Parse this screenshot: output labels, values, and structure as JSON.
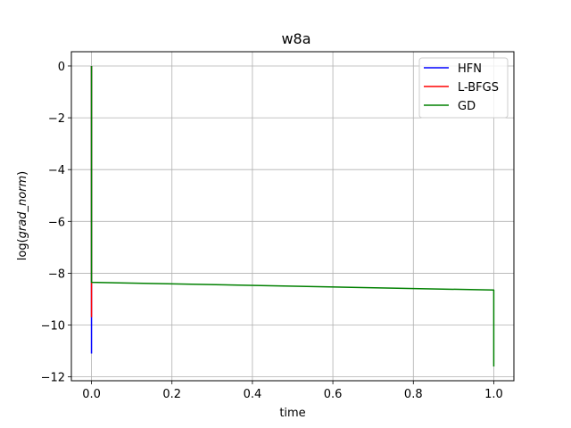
{
  "chart_data": {
    "type": "line",
    "title": "w8a",
    "xlabel": "time",
    "ylabel_prefix": "log(",
    "ylabel_italic": "grad_norm",
    "ylabel_suffix": ")",
    "xlim": [
      -0.05,
      1.05
    ],
    "ylim": [
      -12.15,
      0.55
    ],
    "xticks": [
      0.0,
      0.2,
      0.4,
      0.6,
      0.8,
      1.0
    ],
    "xtick_labels": [
      "0.0",
      "0.2",
      "0.4",
      "0.6",
      "0.8",
      "1.0"
    ],
    "yticks": [
      0,
      -2,
      -4,
      -6,
      -8,
      -10,
      -12
    ],
    "ytick_labels": [
      "0",
      "−2",
      "−4",
      "−6",
      "−8",
      "−10",
      "−12"
    ],
    "grid": true,
    "legend_position": "top-right",
    "series": [
      {
        "name": "HFN",
        "color": "#0000ff",
        "points": [
          [
            0.0,
            0.0
          ],
          [
            0.0,
            -8.4
          ],
          [
            0.0,
            -9.7
          ],
          [
            0.0,
            -11.1
          ]
        ]
      },
      {
        "name": "L-BFGS",
        "color": "#ff0000",
        "points": [
          [
            0.0,
            0.0
          ],
          [
            0.0,
            -8.4
          ],
          [
            0.0,
            -9.7
          ]
        ]
      },
      {
        "name": "GD",
        "color": "#008000",
        "points": [
          [
            0.0,
            0.0
          ],
          [
            0.0,
            -8.35
          ],
          [
            1.0,
            -8.65
          ],
          [
            1.0,
            -11.6
          ]
        ]
      }
    ]
  }
}
